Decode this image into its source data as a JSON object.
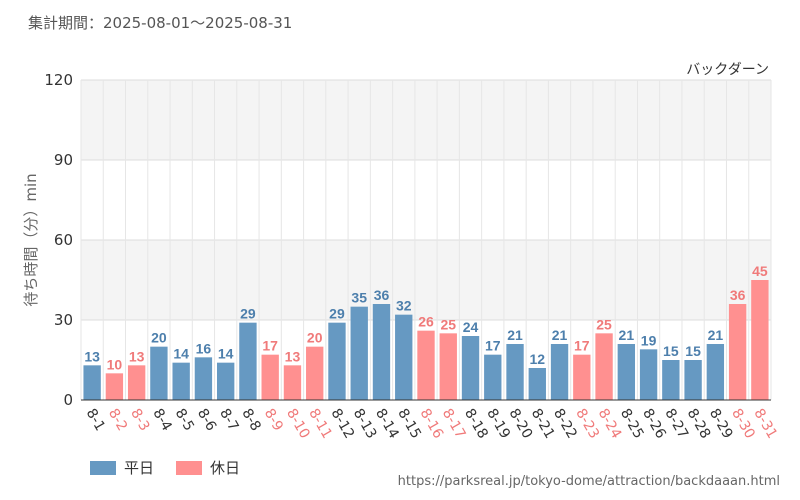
{
  "header": {
    "period_label": "集計期間：2025-08-01～2025-08-31"
  },
  "chart_data": {
    "type": "bar",
    "title": "バックダーン",
    "ylabel": "待ち時間（分）min",
    "ylim": [
      0,
      120
    ],
    "yticks": [
      0,
      30,
      60,
      90,
      120
    ],
    "categories": [
      "8-1",
      "8-2",
      "8-3",
      "8-4",
      "8-5",
      "8-6",
      "8-7",
      "8-8",
      "8-9",
      "8-10",
      "8-11",
      "8-12",
      "8-13",
      "8-14",
      "8-15",
      "8-16",
      "8-17",
      "8-18",
      "8-19",
      "8-20",
      "8-21",
      "8-22",
      "8-23",
      "8-24",
      "8-25",
      "8-26",
      "8-27",
      "8-28",
      "8-29",
      "8-30",
      "8-31"
    ],
    "values": [
      13,
      10,
      13,
      20,
      14,
      16,
      14,
      29,
      17,
      13,
      20,
      29,
      35,
      36,
      32,
      26,
      25,
      24,
      17,
      21,
      12,
      21,
      17,
      25,
      21,
      19,
      15,
      15,
      21,
      36,
      45
    ],
    "day_type": [
      "weekday",
      "holiday",
      "holiday",
      "weekday",
      "weekday",
      "weekday",
      "weekday",
      "weekday",
      "holiday",
      "holiday",
      "holiday",
      "weekday",
      "weekday",
      "weekday",
      "weekday",
      "holiday",
      "holiday",
      "weekday",
      "weekday",
      "weekday",
      "weekday",
      "weekday",
      "holiday",
      "holiday",
      "weekday",
      "weekday",
      "weekday",
      "weekday",
      "weekday",
      "holiday",
      "holiday"
    ],
    "legend": [
      {
        "key": "weekday",
        "label": "平日",
        "color": "#6699c2"
      },
      {
        "key": "holiday",
        "label": "休日",
        "color": "#ff9090"
      }
    ],
    "label_colors": {
      "weekday": "#4d7fac",
      "holiday": "#f07a7a"
    },
    "legend_position": "bottom-left",
    "grid": true
  },
  "footer": {
    "source_url": "https://parksreal.jp/tokyo-dome/attraction/backdaaan.html"
  }
}
